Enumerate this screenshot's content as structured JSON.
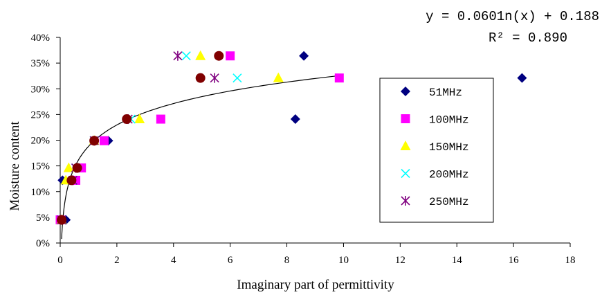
{
  "chart_data": {
    "type": "scatter",
    "title": "",
    "xlabel": "Imaginary part of permittivity",
    "ylabel": "Moisture content",
    "xlim": [
      0,
      18
    ],
    "ylim": [
      0,
      0.4
    ],
    "x_ticks": [
      "0",
      "2",
      "4",
      "6",
      "8",
      "10",
      "12",
      "14",
      "16",
      "18"
    ],
    "y_ticks": [
      "0%",
      "5%",
      "10%",
      "15%",
      "20%",
      "25%",
      "30%",
      "35%",
      "40%"
    ],
    "legend_position": "right",
    "grid": false,
    "equation": "y = 0.0601n(x) + 0.188",
    "r_squared": "R² = 0.890",
    "trendline": {
      "type": "logarithmic",
      "a": 0.0601,
      "b": 0.188,
      "x_range": [
        0.05,
        9.9
      ]
    },
    "series": [
      {
        "name": "51MHz",
        "marker": "diamond",
        "color": "#000080",
        "points": [
          [
            0.2,
            0.045
          ],
          [
            0.08,
            0.122
          ],
          [
            1.7,
            0.199
          ],
          [
            8.3,
            0.241
          ],
          [
            8.6,
            0.364
          ],
          [
            16.3,
            0.321
          ]
        ]
      },
      {
        "name": "100MHz",
        "marker": "square",
        "color": "#FF00FF",
        "points": [
          [
            0.0,
            0.045
          ],
          [
            0.55,
            0.122
          ],
          [
            0.75,
            0.146
          ],
          [
            1.55,
            0.199
          ],
          [
            3.55,
            0.241
          ],
          [
            6.0,
            0.364
          ],
          [
            9.85,
            0.321
          ]
        ]
      },
      {
        "name": "150MHz",
        "marker": "triangle",
        "color": "#FFFF00",
        "points": [
          [
            0.05,
            0.045
          ],
          [
            0.2,
            0.122
          ],
          [
            0.3,
            0.146
          ],
          [
            1.2,
            0.199
          ],
          [
            2.8,
            0.241
          ],
          [
            4.95,
            0.364
          ],
          [
            7.7,
            0.321
          ]
        ]
      },
      {
        "name": "200MHz",
        "marker": "x",
        "color": "#00FFFF",
        "points": [
          [
            0.05,
            0.045
          ],
          [
            0.45,
            0.122
          ],
          [
            0.55,
            0.146
          ],
          [
            1.2,
            0.199
          ],
          [
            2.5,
            0.241
          ],
          [
            4.45,
            0.364
          ],
          [
            6.25,
            0.321
          ]
        ]
      },
      {
        "name": "250MHz",
        "marker": "asterisk",
        "color": "#800080",
        "points": [
          [
            0.05,
            0.045
          ],
          [
            0.45,
            0.122
          ],
          [
            0.55,
            0.146
          ],
          [
            1.2,
            0.199
          ],
          [
            2.4,
            0.241
          ],
          [
            4.15,
            0.364
          ],
          [
            5.45,
            0.321
          ]
        ]
      },
      {
        "name": "",
        "marker": "circle",
        "color": "#800000",
        "points": [
          [
            0.05,
            0.045
          ],
          [
            0.4,
            0.122
          ],
          [
            0.6,
            0.146
          ],
          [
            1.2,
            0.199
          ],
          [
            2.35,
            0.241
          ],
          [
            5.6,
            0.364
          ],
          [
            4.95,
            0.321
          ]
        ]
      }
    ]
  }
}
